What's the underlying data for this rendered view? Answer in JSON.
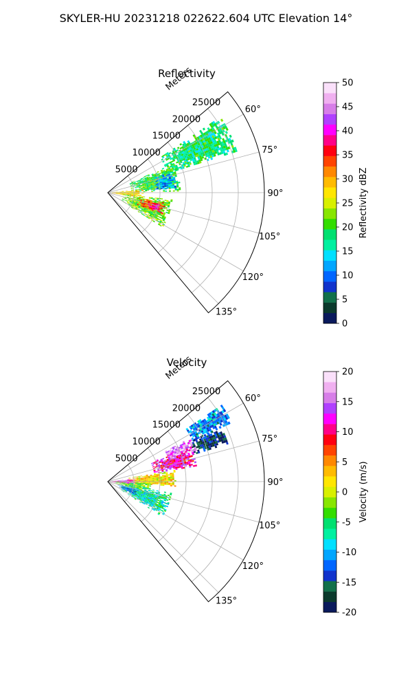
{
  "figure": {
    "title": "SKYLER-HU  20231218  022622.604 UTC Elevation 14°"
  },
  "chart_data": [
    {
      "type": "heatmap",
      "title": "Reflectivity",
      "radial_label": "Meters",
      "radial_ticks": [
        5000,
        10000,
        15000,
        20000,
        25000
      ],
      "radial_range": [
        0,
        30000
      ],
      "angle_ticks": [
        "60°",
        "75°",
        "90°",
        "105°",
        "120°",
        "135°"
      ],
      "angle_tick_values": [
        60,
        75,
        90,
        105,
        120,
        135
      ],
      "angle_range": [
        50,
        140
      ],
      "grid": true,
      "colorbar": {
        "label": "Reflectivity dBZ",
        "min": 0,
        "max": 50,
        "ticks": [
          0,
          5,
          10,
          15,
          20,
          25,
          30,
          35,
          40,
          45,
          50
        ],
        "colors": [
          "#0a1a5c",
          "#0b3a2c",
          "#12704a",
          "#1133cc",
          "#0066ff",
          "#00a6ff",
          "#00e0ff",
          "#00f0a0",
          "#00e070",
          "#33dd00",
          "#88e600",
          "#d8f000",
          "#ffe600",
          "#ffbb00",
          "#ff8800",
          "#ff4400",
          "#ff0011",
          "#ff0088",
          "#ff00ff",
          "#b040ff",
          "#d77ee8",
          "#f0b0f0",
          "#fae0fa"
        ]
      },
      "echo_regions": [
        {
          "az": [
            56,
            72
          ],
          "r": [
            12000,
            26000
          ],
          "value": 18
        },
        {
          "az": [
            66,
            88
          ],
          "r": [
            4500,
            14000
          ],
          "value": 20
        },
        {
          "az": [
            84,
            99
          ],
          "r": [
            400,
            6500
          ],
          "value": 28
        },
        {
          "az": [
            96,
            122
          ],
          "r": [
            3000,
            12500
          ],
          "value": 22
        },
        {
          "az": [
            100,
            112
          ],
          "r": [
            6000,
            11000
          ],
          "value": 33
        },
        {
          "az": [
            103,
            110
          ],
          "r": [
            8000,
            10500
          ],
          "value": 38
        },
        {
          "az": [
            72,
            86
          ],
          "r": [
            9000,
            13000
          ],
          "value": 12
        }
      ]
    },
    {
      "type": "heatmap",
      "title": "Velocity",
      "radial_label": "Meters",
      "radial_ticks": [
        5000,
        10000,
        15000,
        20000,
        25000
      ],
      "radial_range": [
        0,
        30000
      ],
      "angle_ticks": [
        "60°",
        "75°",
        "90°",
        "105°",
        "120°",
        "135°"
      ],
      "angle_tick_values": [
        60,
        75,
        90,
        105,
        120,
        135
      ],
      "angle_range": [
        50,
        140
      ],
      "grid": true,
      "colorbar": {
        "label": "Velocity (m/s)",
        "min": -20,
        "max": 20,
        "ticks": [
          -20,
          -15,
          -10,
          -5,
          0,
          5,
          10,
          15,
          20
        ],
        "colors": [
          "#0a1a5c",
          "#0b3a2c",
          "#12704a",
          "#1133cc",
          "#0066ff",
          "#00a6ff",
          "#00e0ff",
          "#00f0a0",
          "#00e070",
          "#33dd00",
          "#88e600",
          "#d8f000",
          "#ffe600",
          "#ffbb00",
          "#ff8800",
          "#ff4400",
          "#ff0011",
          "#ff0088",
          "#ff00ff",
          "#b040ff",
          "#d77ee8",
          "#f0b0f0",
          "#fae0fa"
        ]
      },
      "echo_regions": [
        {
          "az": [
            56,
            64
          ],
          "r": [
            18000,
            26000
          ],
          "value": -11
        },
        {
          "az": [
            64,
            72
          ],
          "r": [
            17000,
            24000
          ],
          "value": -16
        },
        {
          "az": [
            66,
            80
          ],
          "r": [
            9000,
            17000
          ],
          "value": 11
        },
        {
          "az": [
            62,
            70
          ],
          "r": [
            12000,
            18000
          ],
          "value": 15
        },
        {
          "az": [
            80,
            94
          ],
          "r": [
            4000,
            13000
          ],
          "value": 2
        },
        {
          "az": [
            84,
            96
          ],
          "r": [
            300,
            5000
          ],
          "value": 12
        },
        {
          "az": [
            92,
            106
          ],
          "r": [
            1500,
            8000
          ],
          "value": -3
        },
        {
          "az": [
            100,
            122
          ],
          "r": [
            3000,
            12500
          ],
          "value": -7
        },
        {
          "az": [
            104,
            116
          ],
          "r": [
            2000,
            6000
          ],
          "value": -12
        }
      ]
    }
  ]
}
